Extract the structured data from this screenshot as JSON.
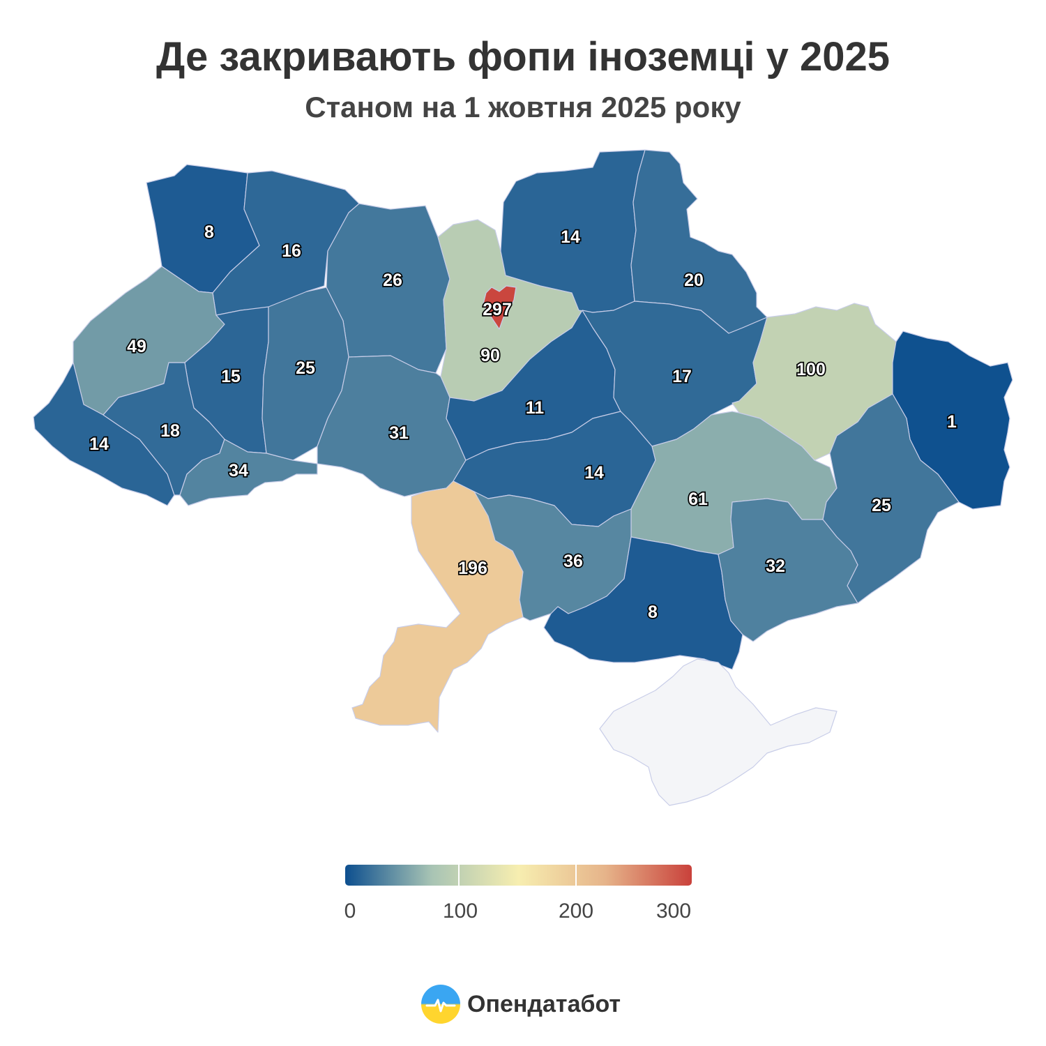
{
  "header": {
    "title": "Де закривають фопи іноземці у 2025",
    "subtitle": "Станом на 1 жовтня 2025 року"
  },
  "map_data": {
    "value_field": "count",
    "regions": [
      {
        "name": "Волинська",
        "value": 8
      },
      {
        "name": "Рівненська",
        "value": 16
      },
      {
        "name": "Житомирська",
        "value": 26
      },
      {
        "name": "Київська",
        "value": 90
      },
      {
        "name": "м. Київ",
        "value": 297
      },
      {
        "name": "Чернігівська",
        "value": 14
      },
      {
        "name": "Сумська",
        "value": 20
      },
      {
        "name": "Львівська",
        "value": 49
      },
      {
        "name": "Тернопільська",
        "value": 15
      },
      {
        "name": "Хмельницька",
        "value": 25
      },
      {
        "name": "Вінницька",
        "value": 31
      },
      {
        "name": "Черкаська",
        "value": 11
      },
      {
        "name": "Полтавська",
        "value": 17
      },
      {
        "name": "Харківська",
        "value": 100
      },
      {
        "name": "Луганська",
        "value": 1
      },
      {
        "name": "Закарпатська",
        "value": 14
      },
      {
        "name": "Івано-Франківська",
        "value": 18
      },
      {
        "name": "Чернівецька",
        "value": 34
      },
      {
        "name": "Кіровоградська",
        "value": 14
      },
      {
        "name": "Дніпропетровська",
        "value": 61
      },
      {
        "name": "Донецька",
        "value": 25
      },
      {
        "name": "Одеська",
        "value": 196
      },
      {
        "name": "Миколаївська",
        "value": 36
      },
      {
        "name": "Херсонська",
        "value": 8
      },
      {
        "name": "Запорізька",
        "value": 32
      },
      {
        "name": "Крим",
        "value": null
      }
    ],
    "no_data_color": "#f4f5f8"
  },
  "legend": {
    "ticks": [
      "0",
      "100",
      "200",
      "300"
    ],
    "min": 0,
    "max": 300,
    "colors": [
      "#0d4f8f",
      "#a8c4b4",
      "#f7eeb0",
      "#e6b48a",
      "#c9413b"
    ]
  },
  "brand": {
    "name": "Опендатабот"
  }
}
